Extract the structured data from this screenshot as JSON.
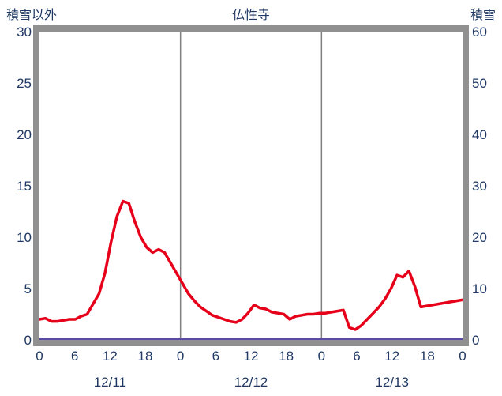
{
  "header": {
    "left_label": "積雪以外",
    "title": "仏性寺",
    "right_label": "積雪"
  },
  "colors": {
    "line_other": "#e60019",
    "line_snow": "#5b4aa8",
    "frame": "#909090",
    "gridline": "#808080",
    "text": "#1f3864",
    "plot_background": "#ffffff"
  },
  "chart_data": {
    "type": "line",
    "title": "仏性寺",
    "left_axis": {
      "label": "積雪以外",
      "min": 0,
      "max": 30,
      "ticks": [
        0,
        5,
        10,
        15,
        20,
        25,
        30
      ]
    },
    "right_axis": {
      "label": "積雪",
      "min": 0,
      "max": 60,
      "ticks": [
        0,
        10,
        20,
        30,
        40,
        50,
        60
      ]
    },
    "x_axis": {
      "hours_total": 72,
      "tick_hours": [
        0,
        6,
        12,
        18,
        24,
        30,
        36,
        42,
        48,
        54,
        60,
        66,
        72
      ],
      "tick_labels": [
        "0",
        "6",
        "12",
        "18",
        "0",
        "6",
        "12",
        "18",
        "0",
        "6",
        "12",
        "18",
        "0"
      ],
      "day_labels": [
        "12/11",
        "12/12",
        "12/13"
      ],
      "day_label_hours": [
        12,
        36,
        60
      ],
      "gridlines_at_hours": [
        24,
        48
      ]
    },
    "series": [
      {
        "name": "積雪以外",
        "axis": "left",
        "color": "#e60019",
        "values": [
          2.0,
          2.1,
          1.8,
          1.8,
          1.9,
          2.0,
          2.0,
          2.3,
          2.5,
          3.5,
          4.5,
          6.5,
          9.5,
          12.0,
          13.5,
          13.3,
          11.5,
          10.0,
          9.0,
          8.5,
          8.8,
          8.5,
          7.5,
          6.5,
          5.5,
          4.5,
          3.8,
          3.2,
          2.8,
          2.4,
          2.2,
          2.0,
          1.8,
          1.7,
          2.0,
          2.6,
          3.4,
          3.1,
          3.0,
          2.7,
          2.6,
          2.5,
          2.0,
          2.3,
          2.4,
          2.5,
          2.5,
          2.6,
          2.6,
          2.7,
          2.8,
          2.9,
          1.2,
          1.0,
          1.4,
          2.0,
          2.6,
          3.2,
          4.0,
          5.0,
          6.3,
          6.1,
          6.7,
          5.2,
          3.2,
          3.3,
          3.4,
          3.5,
          3.6,
          3.7,
          3.8,
          3.9
        ]
      },
      {
        "name": "積雪",
        "axis": "right",
        "color": "#5b4aa8",
        "values": [
          0,
          0,
          0,
          0,
          0,
          0,
          0,
          0,
          0,
          0,
          0,
          0,
          0,
          0,
          0,
          0,
          0,
          0,
          0,
          0,
          0,
          0,
          0,
          0,
          0,
          0,
          0,
          0,
          0,
          0,
          0,
          0,
          0,
          0,
          0,
          0,
          0,
          0,
          0,
          0,
          0,
          0,
          0,
          0,
          0,
          0,
          0,
          0,
          0,
          0,
          0,
          0,
          0,
          0,
          0,
          0,
          0,
          0,
          0,
          0,
          0,
          0,
          0,
          0,
          0,
          0,
          0,
          0,
          0,
          0,
          0,
          0
        ]
      }
    ]
  }
}
